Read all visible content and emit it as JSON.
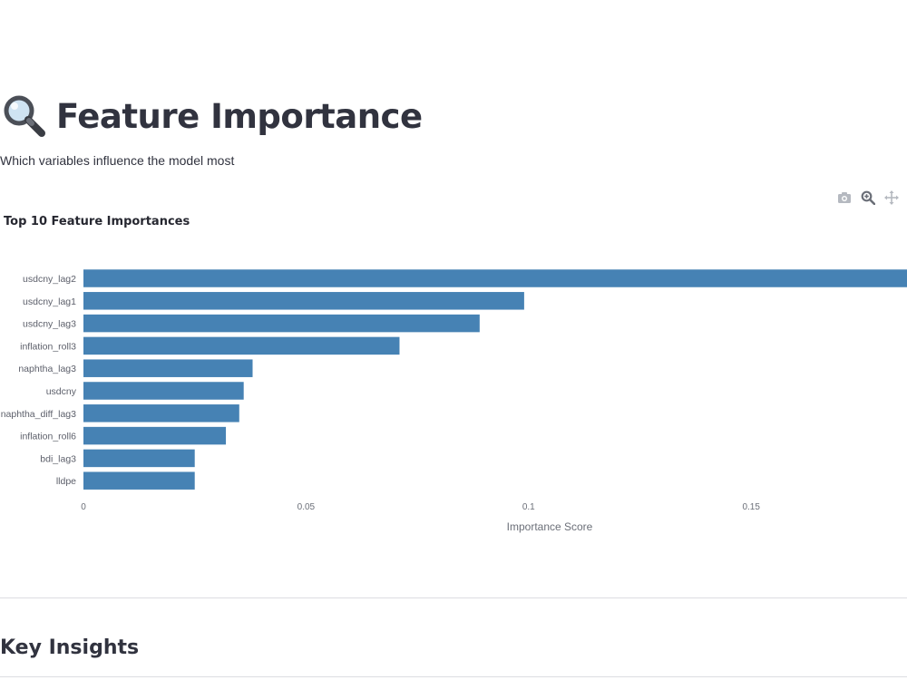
{
  "page": {
    "title_icon": "magnifying-glass-icon",
    "title": "Feature Importance",
    "subtitle": "Which variables influence the model most"
  },
  "toolbar": {
    "icons": [
      "camera-icon",
      "zoom-icon",
      "pan-icon"
    ]
  },
  "chart_data": {
    "type": "bar",
    "orientation": "horizontal",
    "title": "Top 10 Feature Importances",
    "xlabel": "Importance Score",
    "ylabel": "",
    "xlim": [
      0,
      0.185
    ],
    "x_ticks": [
      {
        "value": 0,
        "label": "0"
      },
      {
        "value": 0.05,
        "label": "0.05"
      },
      {
        "value": 0.1,
        "label": "0.1"
      },
      {
        "value": 0.15,
        "label": "0.15"
      }
    ],
    "categories": [
      "usdcny_lag2",
      "usdcny_lag1",
      "usdcny_lag3",
      "inflation_roll3",
      "naphtha_lag3",
      "usdcny",
      "naphtha_diff_lag3",
      "inflation_roll6",
      "bdi_lag3",
      "lldpe"
    ],
    "values": [
      0.185,
      0.099,
      0.089,
      0.071,
      0.038,
      0.036,
      0.035,
      0.032,
      0.025,
      0.025
    ],
    "bar_color": "#4682b4",
    "grid": false
  },
  "section": {
    "heading": "Key Insights"
  }
}
